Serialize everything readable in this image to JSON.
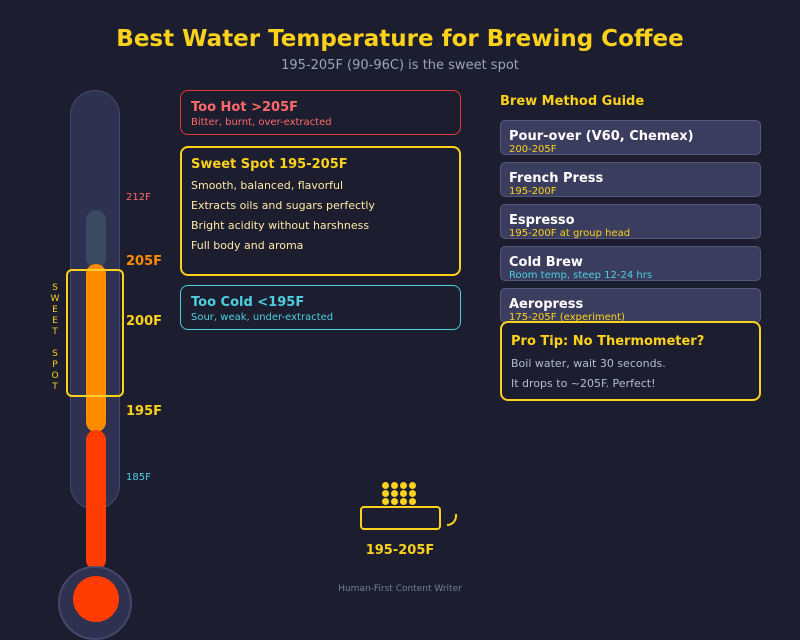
{
  "header": {
    "title": "Best Water Temperature for Brewing Coffee",
    "subtitle": "195-205F (90-96C) is the sweet spot"
  },
  "thermometer": {
    "sweet_label_letters": [
      "S",
      "W",
      "E",
      "E",
      "T",
      "",
      "S",
      "P",
      "O",
      "T"
    ],
    "ticks": {
      "t212": "212F",
      "t205": "205F",
      "t200": "200F",
      "t195": "195F",
      "t185": "185F"
    },
    "colors": {
      "hot": "#ff3d00",
      "warm": "#ff8c00",
      "sweet": "#fcd21c",
      "cold": "#4dd0e1"
    }
  },
  "zones": {
    "too_hot": {
      "heading": "Too Hot >205F",
      "desc": "Bitter, burnt, over-extracted"
    },
    "sweet_spot": {
      "heading": "Sweet Spot  195-205F",
      "items": [
        "Smooth, balanced, flavorful",
        "Extracts oils and sugars perfectly",
        "Bright acidity without harshness",
        "Full body and aroma"
      ]
    },
    "too_cold": {
      "heading": "Too Cold <195F",
      "desc": "Sour, weak, under-extracted"
    }
  },
  "guide": {
    "title": "Brew Method Guide",
    "methods": [
      {
        "name": "Pour-over (V60, Chemex)",
        "temp": "200-205F",
        "color": "#fcd21c"
      },
      {
        "name": "French Press",
        "temp": "195-200F",
        "color": "#fcd21c"
      },
      {
        "name": "Espresso",
        "temp": "195-200F at group head",
        "color": "#fcd21c"
      },
      {
        "name": "Cold Brew",
        "temp": "Room temp, steep 12-24 hrs",
        "color": "#4dd0e1"
      },
      {
        "name": "Aeropress",
        "temp": "175-205F (experiment)",
        "color": "#fcd21c"
      }
    ]
  },
  "tip": {
    "heading": "Pro Tip: No Thermometer?",
    "line1": "Boil water, wait 30 seconds.",
    "line2": "It drops to ~205F. Perfect!"
  },
  "cup": {
    "label": "195-205F"
  },
  "footer": "Human-First Content Writer"
}
